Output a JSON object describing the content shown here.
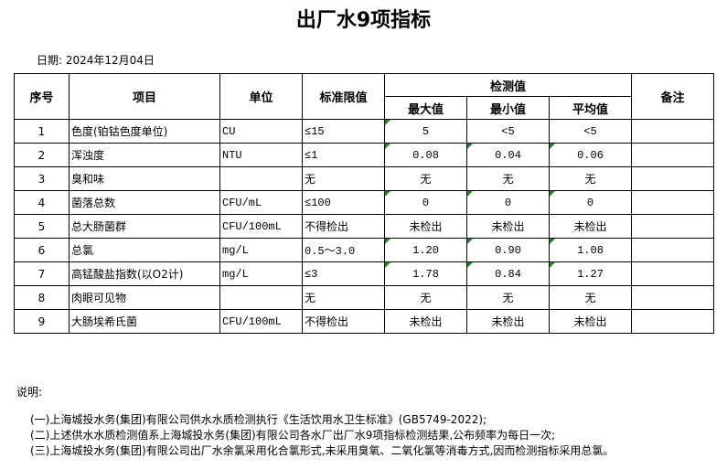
{
  "title": "出厂水9项指标",
  "date_label": "日期: 2024年12月04日",
  "headers": {
    "index": "序号",
    "item": "项目",
    "unit": "单位",
    "standard": "标准限值",
    "measured": "检测值",
    "max": "最大值",
    "min": "最小值",
    "avg": "平均值",
    "remark": "备注"
  },
  "rows": [
    {
      "no": "1",
      "item": "色度(铂钴色度单位)",
      "unit": "CU",
      "std": "≤15",
      "max": "5",
      "min": "<5",
      "avg": "<5",
      "remark": "",
      "flags": [
        true,
        false,
        false
      ]
    },
    {
      "no": "2",
      "item": "浑浊度",
      "unit": "NTU",
      "std": "≤1",
      "max": "0.08",
      "min": "0.04",
      "avg": "0.06",
      "remark": "",
      "flags": [
        true,
        true,
        true
      ]
    },
    {
      "no": "3",
      "item": "臭和味",
      "unit": "",
      "std": "无",
      "max": "无",
      "min": "无",
      "avg": "无",
      "remark": "",
      "flags": [
        false,
        false,
        false
      ]
    },
    {
      "no": "4",
      "item": "菌落总数",
      "unit": "CFU/mL",
      "std": "≤100",
      "max": "0",
      "min": "0",
      "avg": "0",
      "remark": "",
      "flags": [
        true,
        true,
        true
      ]
    },
    {
      "no": "5",
      "item": "总大肠菌群",
      "unit": "CFU/100mL",
      "std": "不得检出",
      "max": "未检出",
      "min": "未检出",
      "avg": "未检出",
      "remark": "",
      "flags": [
        false,
        false,
        false
      ]
    },
    {
      "no": "6",
      "item": "总氯",
      "unit": "mg/L",
      "std": "0.5～3.0",
      "max": "1.20",
      "min": "0.90",
      "avg": "1.08",
      "remark": "",
      "flags": [
        true,
        true,
        true
      ]
    },
    {
      "no": "7",
      "item": "高锰酸盐指数(以O2计)",
      "unit": "mg/L",
      "std": "≤3",
      "max": "1.78",
      "min": "0.84",
      "avg": "1.27",
      "remark": "",
      "flags": [
        true,
        true,
        true
      ]
    },
    {
      "no": "8",
      "item": "肉眼可见物",
      "unit": "",
      "std": "无",
      "max": "无",
      "min": "无",
      "avg": "无",
      "remark": "",
      "flags": [
        false,
        false,
        false
      ]
    },
    {
      "no": "9",
      "item": "大肠埃希氏菌",
      "unit": "CFU/100mL",
      "std": "不得检出",
      "max": "未检出",
      "min": "未检出",
      "avg": "未检出",
      "remark": "",
      "flags": [
        false,
        false,
        false
      ]
    }
  ],
  "notes": {
    "label": "说明:",
    "lines": [
      "(一)上海城投水务(集团)有限公司供水水质检测执行《生活饮用水卫生标准》(GB5749-2022);",
      "(二)上述供水水质检测值系上海城投水务(集团)有限公司各水厂出厂水9项指标检测结果,公布频率为每日一次;",
      "(三)上海城投水务(集团)有限公司出厂水余氯采用化合氯形式,未采用臭氧、二氧化氯等消毒方式,因而检测指标采用总氯。"
    ]
  },
  "colors": {
    "flag": "#1a8a1a"
  }
}
